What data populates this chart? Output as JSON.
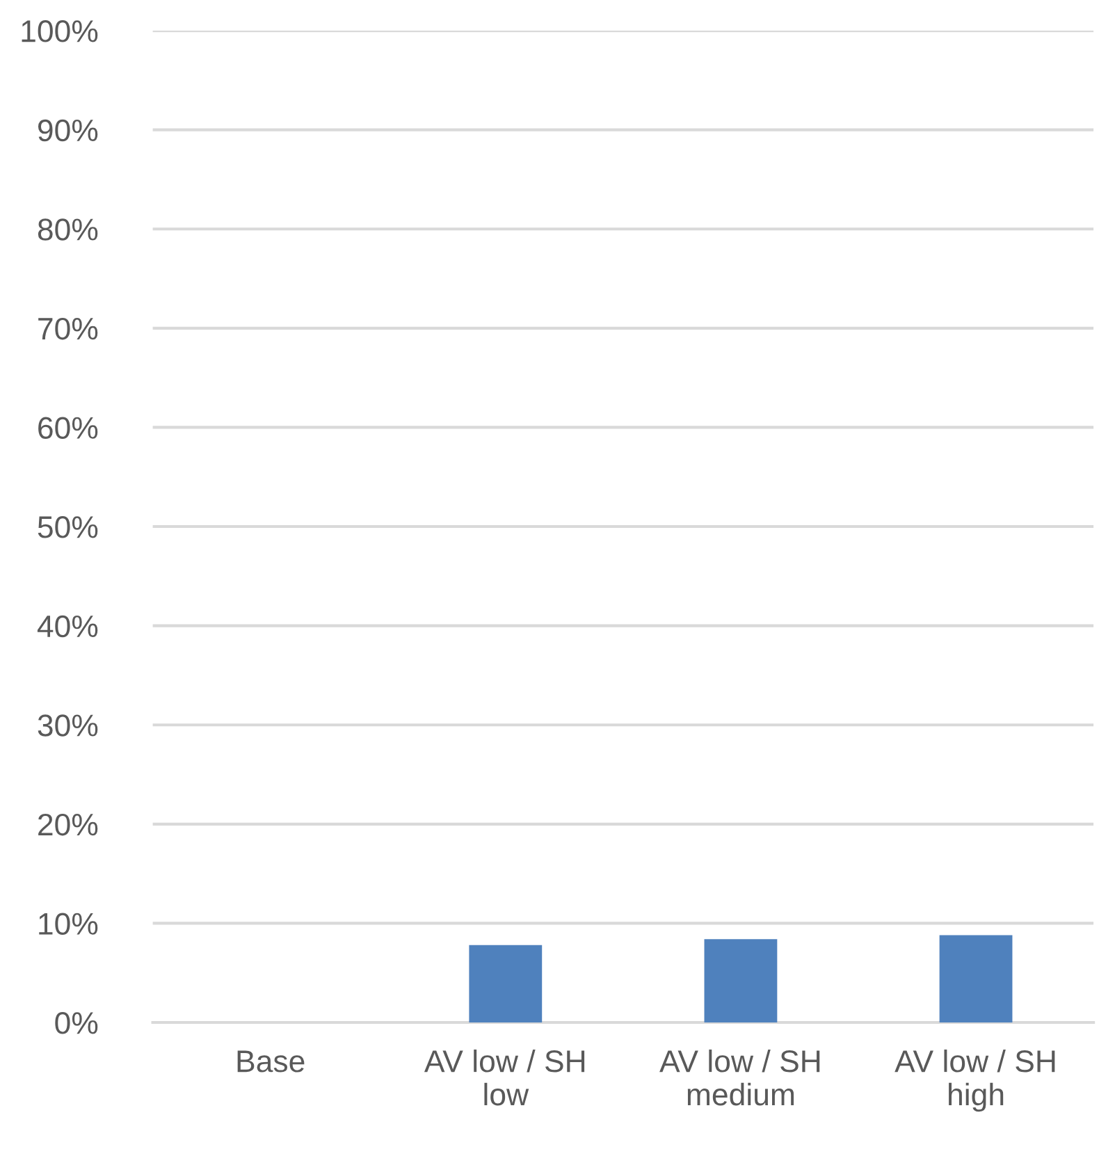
{
  "chart_data": {
    "type": "bar",
    "categories": [
      "Base",
      "AV low / SH low",
      "AV low / SH medium",
      "AV low / SH high"
    ],
    "values": [
      0,
      7.8,
      8.4,
      8.8
    ],
    "color": "#4f81bd",
    "ylim": [
      0,
      100
    ],
    "yticks": [
      {
        "value": 0,
        "label": "0%"
      },
      {
        "value": 10,
        "label": "10%"
      },
      {
        "value": 20,
        "label": "20%"
      },
      {
        "value": 30,
        "label": "30%"
      },
      {
        "value": 40,
        "label": "40%"
      },
      {
        "value": 50,
        "label": "50%"
      },
      {
        "value": 60,
        "label": "60%"
      },
      {
        "value": 70,
        "label": "70%"
      },
      {
        "value": 80,
        "label": "80%"
      },
      {
        "value": 90,
        "label": "90%"
      },
      {
        "value": 100,
        "label": "100%"
      }
    ],
    "grid": "y",
    "legend": false
  }
}
